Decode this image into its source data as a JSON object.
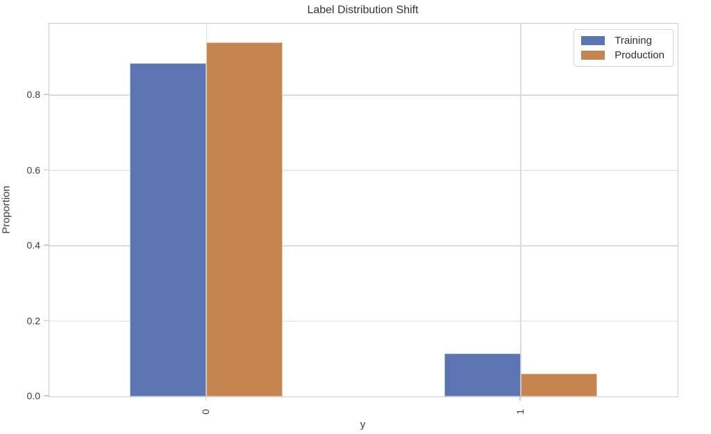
{
  "figure": {
    "title": "Label Distribution Shift",
    "xlabel": "y",
    "ylabel": "Proportion"
  },
  "legend": {
    "position": "upper right",
    "items": [
      {
        "label": "Training",
        "color": "#5B74B2"
      },
      {
        "label": "Production",
        "color": "#C6854F"
      }
    ]
  },
  "chart_data": {
    "type": "bar",
    "title": "Label Distribution Shift",
    "xlabel": "y",
    "ylabel": "Proportion",
    "categories": [
      "0",
      "1"
    ],
    "series": [
      {
        "name": "Training",
        "color": "#5B74B2",
        "values": [
          0.885,
          0.115
        ]
      },
      {
        "name": "Production",
        "color": "#C6854F",
        "values": [
          0.94,
          0.06
        ]
      }
    ],
    "ylim": [
      0,
      0.99
    ],
    "yticks": [
      {
        "value": 0.0,
        "label": "0.0"
      },
      {
        "value": 0.2,
        "label": "0.2"
      },
      {
        "value": 0.4,
        "label": "0.4"
      },
      {
        "value": 0.6,
        "label": "0.6"
      },
      {
        "value": 0.8,
        "label": "0.8"
      }
    ],
    "grid": true,
    "legend_position": "upper right",
    "colors": {
      "grid": "#dcdcdc",
      "spine": "#cbcbcb",
      "text": "#3b3b3b"
    }
  }
}
